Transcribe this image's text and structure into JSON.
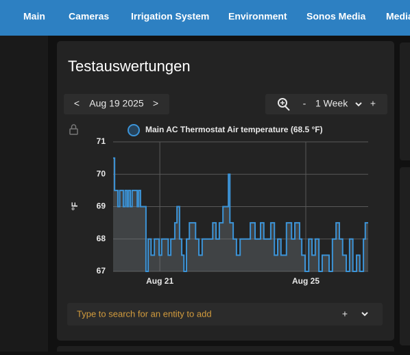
{
  "nav": {
    "tabs": [
      "Main",
      "Cameras",
      "Irrigation System",
      "Environment",
      "Sonos Media",
      "Media"
    ]
  },
  "card": {
    "title": "Testauswertungen",
    "date": {
      "prev": "<",
      "label": "Aug 19 2025",
      "next": ">"
    },
    "zoom": {
      "minus": "-",
      "period": "1 Week",
      "plus": "+"
    },
    "search": {
      "placeholder": "Type to search for an entity to add",
      "add": "+"
    }
  },
  "chart_data": {
    "type": "line",
    "step": "after",
    "area": true,
    "y_label": "°F",
    "xlim": [
      19.72,
      26.71
    ],
    "xticks": [
      {
        "value": 21,
        "label": "Aug 21"
      },
      {
        "value": 25,
        "label": "Aug 25"
      }
    ],
    "ylim": [
      67,
      71
    ],
    "yticks": [
      67,
      68,
      69,
      70,
      71
    ],
    "grid": true,
    "x": [
      19.72,
      19.76,
      19.85,
      19.9,
      20.0,
      20.05,
      20.1,
      20.14,
      20.19,
      20.24,
      20.38,
      20.42,
      20.47,
      20.62,
      20.68,
      20.76,
      20.85,
      20.98,
      21.05,
      21.23,
      21.3,
      21.41,
      21.47,
      21.54,
      21.6,
      21.66,
      21.73,
      21.81,
      21.98,
      22.07,
      22.16,
      22.45,
      22.54,
      22.63,
      22.73,
      22.88,
      22.92,
      23.01,
      23.1,
      23.2,
      23.48,
      23.61,
      23.76,
      23.85,
      24.04,
      24.14,
      24.23,
      24.32,
      24.47,
      24.61,
      24.7,
      24.83,
      24.89,
      24.98,
      25.08,
      25.17,
      25.26,
      25.36,
      25.45,
      25.64,
      25.73,
      25.83,
      25.92,
      26.01,
      26.11,
      26.2,
      26.29,
      26.39,
      26.48,
      26.58,
      26.63
    ],
    "series": [
      {
        "name": "Main AC Thermostat Air temperature (68.5 °F)",
        "color": "#3c94d8",
        "values": [
          70.5,
          69.5,
          69,
          69.5,
          69,
          69.5,
          69,
          69.5,
          69,
          69.5,
          69,
          69.5,
          69,
          67,
          68,
          67.5,
          68,
          67.5,
          68,
          67.5,
          68,
          68.5,
          69,
          68,
          67.5,
          67,
          68,
          68.5,
          68,
          67.5,
          68,
          68.5,
          68,
          68.5,
          69,
          70,
          68.5,
          68,
          67.5,
          68,
          68.5,
          68,
          68.5,
          68,
          68.5,
          67.5,
          68,
          67.5,
          68.5,
          68,
          68.5,
          68,
          67.5,
          67,
          68,
          67.5,
          68,
          67,
          67.5,
          67,
          68,
          68.5,
          68,
          67.5,
          67,
          68,
          67,
          67.5,
          67,
          68,
          68.5
        ]
      }
    ]
  }
}
